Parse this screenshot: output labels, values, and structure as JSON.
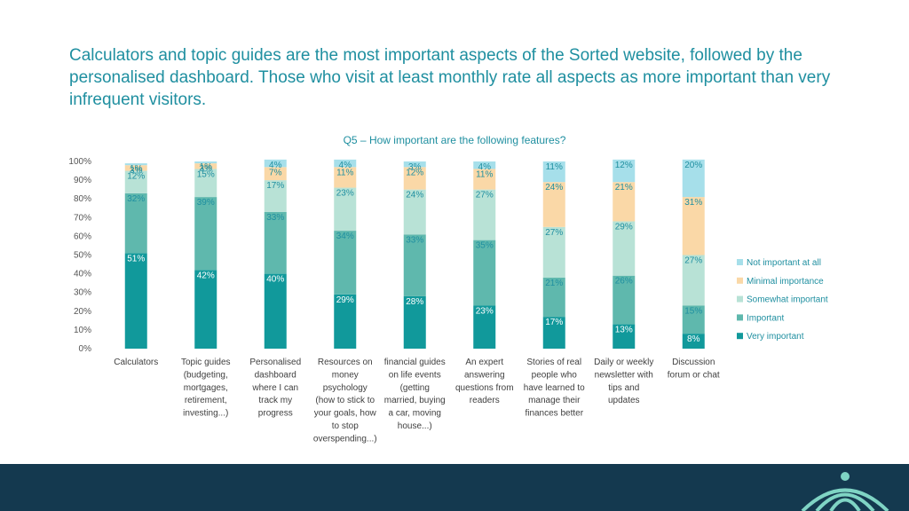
{
  "title": "Calculators and topic guides are the most important aspects of the Sorted website, followed by the personalised dashboard. Those who visit at least monthly rate all aspects as more important than very infrequent visitors.",
  "chart_data": {
    "type": "bar",
    "stacked": true,
    "title": "Q5 – How important are the following features?",
    "ylim": [
      0,
      100
    ],
    "yticks": [
      "0%",
      "10%",
      "20%",
      "30%",
      "40%",
      "50%",
      "60%",
      "70%",
      "80%",
      "90%",
      "100%"
    ],
    "categories": [
      [
        "Calculators"
      ],
      [
        "Topic guides",
        "(budgeting,",
        "mortgages,",
        "retirement,",
        "investing...)"
      ],
      [
        "Personalised",
        "dashboard",
        "where I can",
        "track my",
        "progress"
      ],
      [
        "Resources on",
        "money",
        "psychology",
        "(how to stick to",
        "your goals, how",
        "to stop",
        "overspending...)"
      ],
      [
        "financial guides",
        "on life events",
        "(getting",
        "married, buying",
        "a car, moving",
        "house...)"
      ],
      [
        "An expert",
        "answering",
        "questions from",
        "readers"
      ],
      [
        "Stories of real",
        "people who",
        "have learned to",
        "manage their",
        "finances better"
      ],
      [
        "Daily or weekly",
        "newsletter with",
        "tips and",
        "updates"
      ],
      [
        "Discussion",
        "forum or chat"
      ]
    ],
    "series": [
      {
        "name": "Very important",
        "color": "#11999b",
        "text_color": "#ffffff",
        "values": [
          51,
          42,
          40,
          29,
          28,
          23,
          17,
          13,
          8
        ]
      },
      {
        "name": "Important",
        "color": "#5fb8ad",
        "text_color": "#1f8fa0",
        "values": [
          32,
          39,
          33,
          34,
          33,
          35,
          21,
          26,
          15
        ]
      },
      {
        "name": "Somewhat important",
        "color": "#b8e2d6",
        "text_color": "#1f8fa0",
        "values": [
          12,
          15,
          17,
          23,
          24,
          27,
          27,
          29,
          27
        ]
      },
      {
        "name": "Minimal importance",
        "color": "#fad8a7",
        "text_color": "#1f8fa0",
        "values": [
          3,
          3,
          7,
          11,
          12,
          11,
          24,
          21,
          31
        ]
      },
      {
        "name": "Not important at all",
        "color": "#a6dfea",
        "text_color": "#1f8fa0",
        "values": [
          1,
          1,
          4,
          4,
          3,
          4,
          11,
          12,
          20
        ]
      }
    ],
    "legend_order": [
      "Not important at all",
      "Minimal importance",
      "Somewhat important",
      "Important",
      "Very important"
    ],
    "legend_position": "right"
  }
}
